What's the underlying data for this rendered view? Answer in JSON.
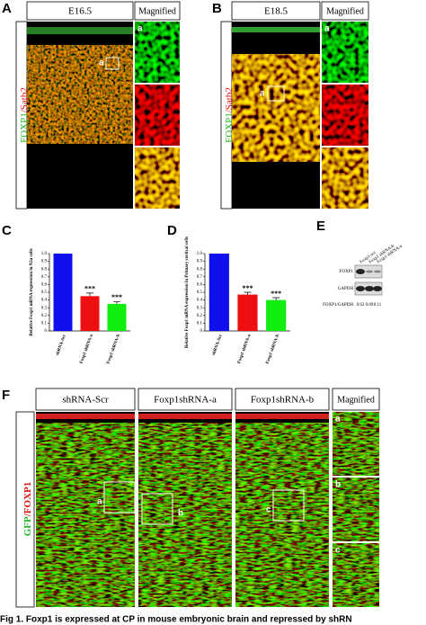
{
  "panel_a": {
    "letter": "A",
    "stage": "E16.5",
    "magnified": "Magnified",
    "stain_green": "FOXP1",
    "stain_red": "/Satb2",
    "inset": "a",
    "sub": "a"
  },
  "panel_b": {
    "letter": "B",
    "stage": "E18.5",
    "magnified": "Magnified",
    "stain_green": "FOXP1",
    "stain_red": "/Satb2",
    "inset": "a",
    "sub": "a"
  },
  "chart_c": {
    "letter": "C",
    "type": "bar",
    "ylabel": "Relative Foxp1 mRNA expression in N2a cells",
    "categories": [
      "shRNA-Scr",
      "Foxp1 shRNA-a",
      "Foxp1 shRNA-b"
    ],
    "values": [
      1.0,
      0.45,
      0.35
    ],
    "errors": [
      0,
      0.04,
      0.03
    ],
    "annotations": [
      null,
      "***",
      "***"
    ],
    "colors": [
      "#1010ee",
      "#ee1010",
      "#10ee10"
    ],
    "ylim": [
      0,
      1
    ],
    "yticks": [
      0,
      0.1,
      0.2,
      0.3,
      0.4,
      0.5,
      0.6,
      0.7,
      0.8,
      0.9,
      {
        "value": 1,
        "label": "1.0"
      }
    ]
  },
  "chart_d": {
    "letter": "D",
    "type": "bar",
    "ylabel": "Relative Foxp1 mRNA expression in Primary cortical cells",
    "categories": [
      "shRNA-Scr",
      "Foxp1 shRNA-a",
      "Foxp1 shRNA-b"
    ],
    "values": [
      1.0,
      0.47,
      0.4
    ],
    "errors": [
      0,
      0.03,
      0.03
    ],
    "annotations": [
      null,
      "***",
      "***"
    ],
    "colors": [
      "#1010ee",
      "#ee1010",
      "#10ee10"
    ],
    "ylim": [
      0,
      1
    ],
    "yticks": [
      0,
      0.1,
      0.2,
      0.3,
      0.4,
      0.5,
      0.6,
      0.7,
      0.8,
      0.9,
      {
        "value": 1,
        "label": "1.0"
      }
    ]
  },
  "panel_e": {
    "letter": "E",
    "lanes": [
      "Foxp1-scr",
      "Foxp1 shRNA-b",
      "Foxp1 shRNA-a"
    ],
    "rows": [
      "FOXP1",
      "GAPDH"
    ],
    "ratio_label": "FOXP1/GAPDH",
    "ratios": [
      0.62,
      0.09,
      0.11
    ]
  },
  "panel_f": {
    "letter": "F",
    "columns": [
      "shRNA-Scr",
      "Foxp1shRNA-a",
      "Foxp1shRNA-b",
      "Magnified"
    ],
    "stain_green": "GFP",
    "stain_red": "/FOXP1",
    "insets": [
      "a",
      "b",
      "c"
    ]
  },
  "caption": "Fig 1. Foxp1 is expressed at CP in mouse embryonic brain and repressed by shRN"
}
